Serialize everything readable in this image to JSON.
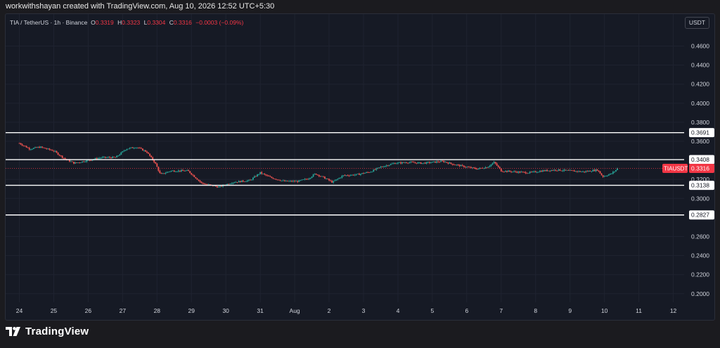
{
  "header": {
    "attribution": "workwithshayan created with TradingView.com, Aug 10, 2026 12:52 UTC+5:30"
  },
  "legend": {
    "symbol": "TIA / TetherUS · 1h · Binance",
    "o_label": "O",
    "o_value": "0.3319",
    "h_label": "H",
    "h_value": "0.3323",
    "l_label": "L",
    "l_value": "0.3304",
    "c_label": "C",
    "c_value": "0.3316",
    "change": "−0.0003 (−0.09%)"
  },
  "currency_button": "USDT",
  "footer": {
    "brand": "TradingView",
    "logo_icon": "tradingview-logo-icon"
  },
  "colors": {
    "up": "#26a69a",
    "down": "#ef5350",
    "background": "#161a25",
    "grid": "#1f2330",
    "level_line": "#ffffff",
    "price_label": "#f23645"
  },
  "chart_data": {
    "type": "candlestick",
    "symbol_label": "TIAUSDT",
    "last_price": 0.3316,
    "y_range": [
      0.18,
      0.48
    ],
    "y_ticks": [
      0.46,
      0.44,
      0.42,
      0.4,
      0.38,
      0.36,
      0.32,
      0.3,
      0.26,
      0.24,
      0.22,
      0.2
    ],
    "y_tick_labels": [
      "0.4600",
      "0.4400",
      "0.4200",
      "0.4000",
      "0.3800",
      "0.3600",
      "0.3200",
      "0.3000",
      "0.2600",
      "0.2400",
      "0.2200",
      "0.2000"
    ],
    "x_labels": [
      "24",
      "25",
      "26",
      "27",
      "28",
      "29",
      "30",
      "31",
      "Aug",
      "2",
      "3",
      "4",
      "5",
      "6",
      "7",
      "8",
      "9",
      "10",
      "11",
      "12"
    ],
    "levels": [
      {
        "label": "0.3691",
        "value": 0.3691
      },
      {
        "label": "0.3408",
        "value": 0.3408
      },
      {
        "label": "0.3138",
        "value": 0.3138
      },
      {
        "label": "0.2827",
        "value": 0.2827
      }
    ],
    "last_price_label": "0.3316",
    "price_path": [
      [
        0,
        0.358
      ],
      [
        0.3,
        0.352
      ],
      [
        0.6,
        0.354
      ],
      [
        1.0,
        0.35
      ],
      [
        1.3,
        0.342
      ],
      [
        1.6,
        0.337
      ],
      [
        2.0,
        0.34
      ],
      [
        2.4,
        0.343
      ],
      [
        2.8,
        0.343
      ],
      [
        3.1,
        0.352
      ],
      [
        3.4,
        0.354
      ],
      [
        3.7,
        0.349
      ],
      [
        3.95,
        0.337
      ],
      [
        4.1,
        0.325
      ],
      [
        4.4,
        0.329
      ],
      [
        4.9,
        0.329
      ],
      [
        5.3,
        0.316
      ],
      [
        5.8,
        0.312
      ],
      [
        6.2,
        0.317
      ],
      [
        6.7,
        0.319
      ],
      [
        7.0,
        0.327
      ],
      [
        7.3,
        0.322
      ],
      [
        7.7,
        0.318
      ],
      [
        8.1,
        0.318
      ],
      [
        8.4,
        0.321
      ],
      [
        8.6,
        0.326
      ],
      [
        8.9,
        0.321
      ],
      [
        9.1,
        0.317
      ],
      [
        9.4,
        0.324
      ],
      [
        9.8,
        0.325
      ],
      [
        10.2,
        0.328
      ],
      [
        10.5,
        0.333
      ],
      [
        10.9,
        0.337
      ],
      [
        11.3,
        0.338
      ],
      [
        11.7,
        0.337
      ],
      [
        12.0,
        0.338
      ],
      [
        12.3,
        0.339
      ],
      [
        12.6,
        0.336
      ],
      [
        13.0,
        0.333
      ],
      [
        13.3,
        0.331
      ],
      [
        13.6,
        0.333
      ],
      [
        13.8,
        0.338
      ],
      [
        14.0,
        0.329
      ],
      [
        14.4,
        0.328
      ],
      [
        14.8,
        0.327
      ],
      [
        15.2,
        0.329
      ],
      [
        15.6,
        0.33
      ],
      [
        16.0,
        0.329
      ],
      [
        16.4,
        0.328
      ],
      [
        16.8,
        0.33
      ],
      [
        16.95,
        0.323
      ],
      [
        17.2,
        0.326
      ],
      [
        17.4,
        0.3316
      ]
    ]
  }
}
